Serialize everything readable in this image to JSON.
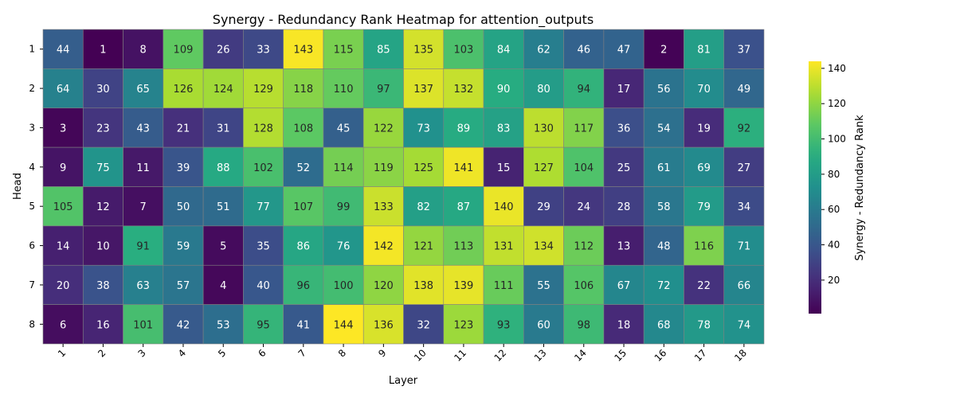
{
  "chart_data": {
    "type": "heatmap",
    "title": "Synergy - Redundancy Rank Heatmap for attention_outputs",
    "xlabel": "Layer",
    "ylabel": "Head",
    "x_categories": [
      "1",
      "2",
      "3",
      "4",
      "5",
      "6",
      "7",
      "8",
      "9",
      "10",
      "11",
      "12",
      "13",
      "14",
      "15",
      "16",
      "17",
      "18"
    ],
    "y_categories": [
      "1",
      "2",
      "3",
      "4",
      "5",
      "6",
      "7",
      "8"
    ],
    "values": [
      [
        44,
        1,
        8,
        109,
        26,
        33,
        143,
        115,
        85,
        135,
        103,
        84,
        62,
        46,
        47,
        2,
        81,
        37
      ],
      [
        64,
        30,
        65,
        126,
        124,
        129,
        118,
        110,
        97,
        137,
        132,
        90,
        80,
        94,
        17,
        56,
        70,
        49
      ],
      [
        3,
        23,
        43,
        21,
        31,
        128,
        108,
        45,
        122,
        73,
        89,
        83,
        130,
        117,
        36,
        54,
        19,
        92
      ],
      [
        9,
        75,
        11,
        39,
        88,
        102,
        52,
        114,
        119,
        125,
        141,
        15,
        127,
        104,
        25,
        61,
        69,
        27
      ],
      [
        105,
        12,
        7,
        50,
        51,
        77,
        107,
        99,
        133,
        82,
        87,
        140,
        29,
        24,
        28,
        58,
        79,
        34
      ],
      [
        14,
        10,
        91,
        59,
        5,
        35,
        86,
        76,
        142,
        121,
        113,
        131,
        134,
        112,
        13,
        48,
        116,
        71
      ],
      [
        20,
        38,
        63,
        57,
        4,
        40,
        96,
        100,
        120,
        138,
        139,
        111,
        55,
        106,
        67,
        72,
        22,
        66
      ],
      [
        6,
        16,
        101,
        42,
        53,
        95,
        41,
        144,
        136,
        32,
        123,
        93,
        60,
        98,
        18,
        68,
        78,
        74
      ]
    ],
    "colormap": "viridis",
    "value_range": [
      1,
      144
    ],
    "colorbar": {
      "label": "Synergy - Redundancy Rank",
      "ticks": [
        20,
        40,
        60,
        80,
        100,
        120,
        140
      ]
    },
    "annotations": "cell values shown",
    "grid": false,
    "legend": "colorbar-right"
  }
}
